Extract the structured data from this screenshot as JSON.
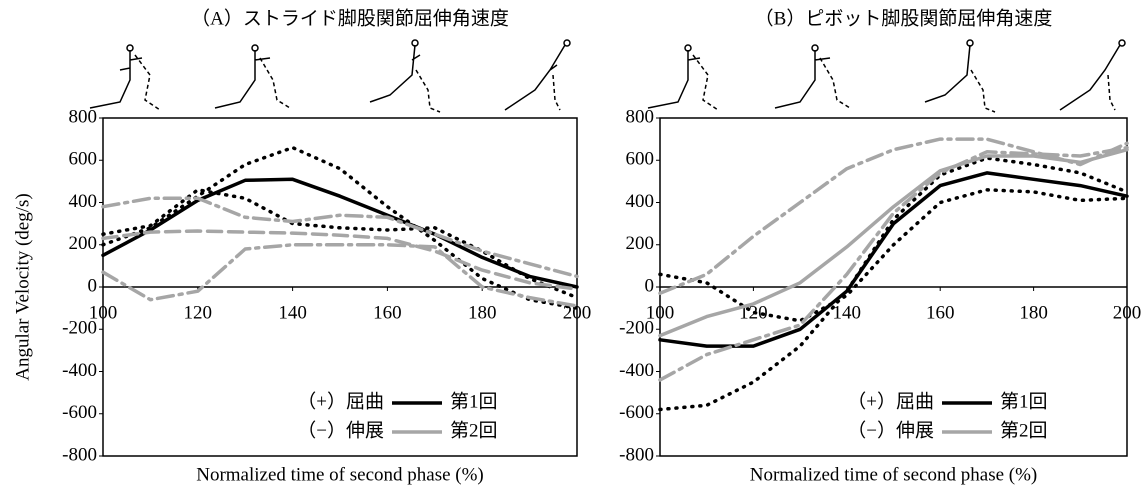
{
  "chart_data": [
    {
      "type": "line",
      "title": "（A）ストライド脚股関節屈伸角速度",
      "ylabel": "Angular Velocity (deg/s)",
      "xlabel": "Normalized time of second phase (%)",
      "x": [
        100,
        110,
        120,
        130,
        140,
        150,
        160,
        170,
        180,
        190,
        200
      ],
      "xlim": [
        100,
        200
      ],
      "xticks": [
        100,
        120,
        140,
        160,
        180,
        200
      ],
      "ylim": [
        -800,
        800
      ],
      "yticks": [
        -800,
        -600,
        -400,
        -200,
        0,
        200,
        400,
        600,
        800
      ],
      "annotations": [
        "（+）屈曲",
        "（−）伸展"
      ],
      "series": [
        {
          "name": "第1回",
          "color": "#000000",
          "style": "solid",
          "values": [
            150,
            270,
            410,
            505,
            510,
            430,
            340,
            250,
            140,
            50,
            0
          ]
        },
        {
          "color": "#000000",
          "style": "dotted",
          "values": [
            200,
            280,
            430,
            580,
            660,
            560,
            380,
            220,
            40,
            -60,
            -100
          ]
        },
        {
          "color": "#000000",
          "style": "dotted",
          "values": [
            250,
            290,
            460,
            420,
            300,
            280,
            270,
            280,
            170,
            40,
            -50
          ]
        },
        {
          "name": "第2回",
          "color": "#a6a6a6",
          "style": "dashed",
          "values": [
            230,
            260,
            265,
            260,
            255,
            245,
            230,
            170,
            80,
            20,
            -10
          ]
        },
        {
          "color": "#a6a6a6",
          "style": "dashdot",
          "values": [
            380,
            420,
            420,
            330,
            310,
            340,
            330,
            250,
            170,
            110,
            50
          ]
        },
        {
          "color": "#a6a6a6",
          "style": "dashdot",
          "values": [
            70,
            -60,
            -20,
            180,
            200,
            200,
            200,
            190,
            0,
            -50,
            -90
          ]
        }
      ]
    },
    {
      "type": "line",
      "title": "（B）ピボット脚股関節屈伸角速度",
      "xlabel": "Normalized time of second phase (%)",
      "x": [
        100,
        110,
        120,
        130,
        140,
        150,
        160,
        170,
        180,
        190,
        200
      ],
      "xlim": [
        100,
        200
      ],
      "xticks": [
        100,
        120,
        140,
        160,
        180,
        200
      ],
      "ylim": [
        -800,
        800
      ],
      "yticks": [
        -800,
        -600,
        -400,
        -200,
        0,
        200,
        400,
        600,
        800
      ],
      "annotations": [
        "（+）屈曲",
        "（−）伸展"
      ],
      "series": [
        {
          "name": "第1回",
          "color": "#000000",
          "style": "solid",
          "values": [
            -250,
            -280,
            -280,
            -200,
            -20,
            300,
            480,
            540,
            510,
            480,
            430
          ]
        },
        {
          "color": "#000000",
          "style": "dotted",
          "values": [
            60,
            20,
            -120,
            -160,
            -40,
            200,
            400,
            460,
            450,
            410,
            420
          ]
        },
        {
          "color": "#000000",
          "style": "dotted",
          "values": [
            -580,
            -560,
            -450,
            -280,
            -20,
            320,
            530,
            610,
            580,
            540,
            450
          ]
        },
        {
          "name": "第2回",
          "color": "#a6a6a6",
          "style": "solid",
          "values": [
            -230,
            -140,
            -80,
            20,
            190,
            380,
            550,
            620,
            620,
            590,
            650
          ]
        },
        {
          "color": "#a6a6a6",
          "style": "dashdot",
          "values": [
            -30,
            60,
            240,
            400,
            560,
            650,
            700,
            700,
            640,
            580,
            680
          ]
        },
        {
          "color": "#a6a6a6",
          "style": "dashdot",
          "values": [
            -440,
            -320,
            -250,
            -180,
            60,
            350,
            540,
            640,
            630,
            620,
            660
          ]
        }
      ]
    }
  ]
}
